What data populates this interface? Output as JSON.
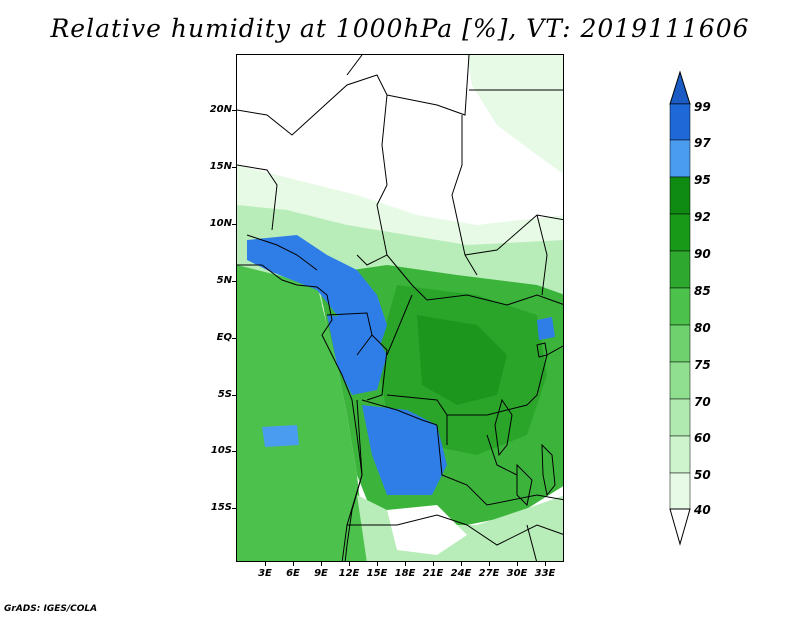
{
  "title": "Relative humidity at 1000hPa [%], VT: 2019111606",
  "footer": "GrADS: IGES/COLA",
  "axes": {
    "lat_labels": [
      "20N",
      "15N",
      "10N",
      "5N",
      "EQ",
      "5S",
      "10S",
      "15S"
    ],
    "lon_labels": [
      "3E",
      "6E",
      "9E",
      "12E",
      "15E",
      "18E",
      "21E",
      "24E",
      "27E",
      "30E",
      "33E"
    ]
  },
  "colorbar": {
    "labels": [
      "99",
      "97",
      "95",
      "92",
      "90",
      "85",
      "80",
      "75",
      "70",
      "60",
      "50",
      "40"
    ],
    "colors": [
      "#1f68d8",
      "#2f7ee8",
      "#4a9cf0",
      "#0f8a12",
      "#22a02a",
      "#3cb43c",
      "#5ac85a",
      "#7cd77c",
      "#9ee39e",
      "#bcefbc",
      "#d6f7d6",
      "#ecfdec"
    ],
    "top_color": "#1a5bc4",
    "bottom_color": "#ffffff"
  },
  "map_colors": {
    "white": "#ffffff",
    "pale": "#e6fae6",
    "light": "#b8ecb8",
    "mid": "#7cd77c",
    "green": "#4cc24c",
    "dark_green": "#2aa52a",
    "deep_green": "#168c18",
    "blue_light": "#4a9cf0",
    "blue": "#2f7ee8",
    "blue_dark": "#1f68d8"
  }
}
